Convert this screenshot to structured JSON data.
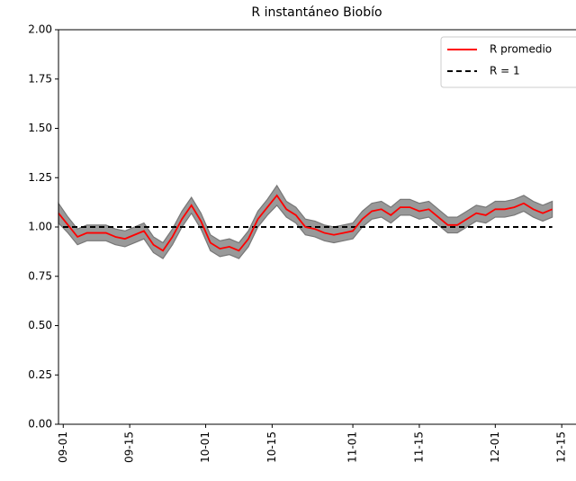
{
  "chart_data": {
    "type": "line",
    "title": "R instantáneo Biobío",
    "x": [
      "08-31",
      "09-02",
      "09-04",
      "09-06",
      "09-08",
      "09-10",
      "09-12",
      "09-14",
      "09-16",
      "09-18",
      "09-20",
      "09-22",
      "09-24",
      "09-26",
      "09-28",
      "09-30",
      "10-02",
      "10-04",
      "10-06",
      "10-08",
      "10-10",
      "10-12",
      "10-14",
      "10-16",
      "10-18",
      "10-20",
      "10-22",
      "10-24",
      "10-26",
      "10-28",
      "10-30",
      "11-01",
      "11-03",
      "11-05",
      "11-07",
      "11-09",
      "11-11",
      "11-13",
      "11-15",
      "11-17",
      "11-19",
      "11-21",
      "11-23",
      "11-25",
      "11-27",
      "11-29",
      "12-01",
      "12-03",
      "12-05",
      "12-07",
      "12-09",
      "12-11",
      "12-13"
    ],
    "series": [
      {
        "name": "R promedio",
        "color": "#ff0000",
        "values": [
          1.07,
          1.01,
          0.95,
          0.97,
          0.97,
          0.97,
          0.95,
          0.94,
          0.96,
          0.98,
          0.91,
          0.88,
          0.95,
          1.04,
          1.11,
          1.03,
          0.92,
          0.89,
          0.9,
          0.88,
          0.94,
          1.04,
          1.1,
          1.16,
          1.09,
          1.06,
          1.0,
          0.99,
          0.97,
          0.96,
          0.97,
          0.98,
          1.04,
          1.08,
          1.09,
          1.06,
          1.1,
          1.1,
          1.08,
          1.09,
          1.05,
          1.01,
          1.01,
          1.04,
          1.07,
          1.06,
          1.09,
          1.09,
          1.1,
          1.12,
          1.09,
          1.07,
          1.09
        ]
      }
    ],
    "band": {
      "color": "#999999",
      "lower": [
        1.02,
        0.97,
        0.91,
        0.93,
        0.93,
        0.93,
        0.91,
        0.9,
        0.92,
        0.94,
        0.87,
        0.84,
        0.91,
        1.0,
        1.07,
        0.99,
        0.88,
        0.85,
        0.86,
        0.84,
        0.9,
        1.0,
        1.06,
        1.11,
        1.05,
        1.02,
        0.96,
        0.95,
        0.93,
        0.92,
        0.93,
        0.94,
        1.0,
        1.04,
        1.05,
        1.02,
        1.06,
        1.06,
        1.04,
        1.05,
        1.01,
        0.97,
        0.97,
        1.0,
        1.03,
        1.02,
        1.05,
        1.05,
        1.06,
        1.08,
        1.05,
        1.03,
        1.05
      ],
      "upper": [
        1.12,
        1.05,
        0.99,
        1.01,
        1.01,
        1.01,
        0.99,
        0.98,
        1.0,
        1.02,
        0.95,
        0.92,
        0.99,
        1.08,
        1.15,
        1.07,
        0.96,
        0.93,
        0.94,
        0.92,
        0.98,
        1.08,
        1.14,
        1.21,
        1.13,
        1.1,
        1.04,
        1.03,
        1.01,
        1.0,
        1.01,
        1.02,
        1.08,
        1.12,
        1.13,
        1.1,
        1.14,
        1.14,
        1.12,
        1.13,
        1.09,
        1.05,
        1.05,
        1.08,
        1.11,
        1.1,
        1.13,
        1.13,
        1.14,
        1.16,
        1.13,
        1.11,
        1.13
      ]
    },
    "reference": {
      "name": "R = 1",
      "value": 1,
      "color": "#000000"
    },
    "xlim": [
      "08-31",
      "12-18"
    ],
    "xticks": [
      "09-01",
      "09-15",
      "10-01",
      "10-15",
      "11-01",
      "11-15",
      "12-01",
      "12-15"
    ],
    "ylim": [
      0,
      2
    ],
    "yticks": [
      {
        "value": 0,
        "label": "0.00"
      },
      {
        "value": 0.25,
        "label": "0.25"
      },
      {
        "value": 0.5,
        "label": "0.50"
      },
      {
        "value": 0.75,
        "label": "0.75"
      },
      {
        "value": 1,
        "label": "1.00"
      },
      {
        "value": 1.25,
        "label": "1.25"
      },
      {
        "value": 1.5,
        "label": "1.50"
      },
      {
        "value": 1.75,
        "label": "1.75"
      },
      {
        "value": 2,
        "label": "2.00"
      }
    ],
    "legend": "upper right"
  }
}
